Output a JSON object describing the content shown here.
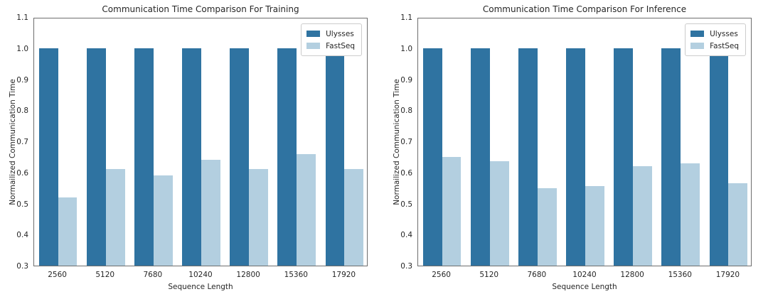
{
  "figure": {
    "background": "#ffffff",
    "text_color": "#262626",
    "spine_color": "#6e6e6e",
    "legend_border_color": "#cccccc"
  },
  "colors": {
    "ulysses": "#2f73a1",
    "fastseq": "#b3cfe0"
  },
  "chart_data": [
    {
      "type": "bar",
      "title": "Communication Time Comparison For Training",
      "xlabel": "Sequence Length",
      "ylabel": "Normailized Communication Time",
      "categories": [
        "2560",
        "5120",
        "7680",
        "10240",
        "12800",
        "15360",
        "17920"
      ],
      "series": [
        {
          "name": "Ulysses",
          "color": "#2f73a1",
          "values": [
            1.0,
            1.0,
            1.0,
            1.0,
            1.0,
            1.0,
            1.0
          ]
        },
        {
          "name": "FastSeq",
          "color": "#b3cfe0",
          "values": [
            0.52,
            0.61,
            0.59,
            0.64,
            0.61,
            0.66,
            0.61
          ]
        }
      ],
      "ylim": [
        0.3,
        1.1
      ],
      "yticks": [
        "1.1",
        "1.0",
        "0.9",
        "0.8",
        "0.7",
        "0.6",
        "0.5",
        "0.4",
        "0.3"
      ],
      "legend_position": "upper right",
      "grid": false
    },
    {
      "type": "bar",
      "title": "Communication Time Comparison For Inference",
      "xlabel": "Sequence Length",
      "ylabel": "Normailized Communication Time",
      "categories": [
        "2560",
        "5120",
        "7680",
        "10240",
        "12800",
        "15360",
        "17920"
      ],
      "series": [
        {
          "name": "Ulysses",
          "color": "#2f73a1",
          "values": [
            1.0,
            1.0,
            1.0,
            1.0,
            1.0,
            1.0,
            1.0
          ]
        },
        {
          "name": "FastSeq",
          "color": "#b3cfe0",
          "values": [
            0.65,
            0.635,
            0.55,
            0.555,
            0.62,
            0.63,
            0.565
          ]
        }
      ],
      "ylim": [
        0.3,
        1.1
      ],
      "yticks": [
        "1.1",
        "1.0",
        "0.9",
        "0.8",
        "0.7",
        "0.6",
        "0.5",
        "0.4",
        "0.3"
      ],
      "legend_position": "upper right",
      "grid": false
    }
  ]
}
